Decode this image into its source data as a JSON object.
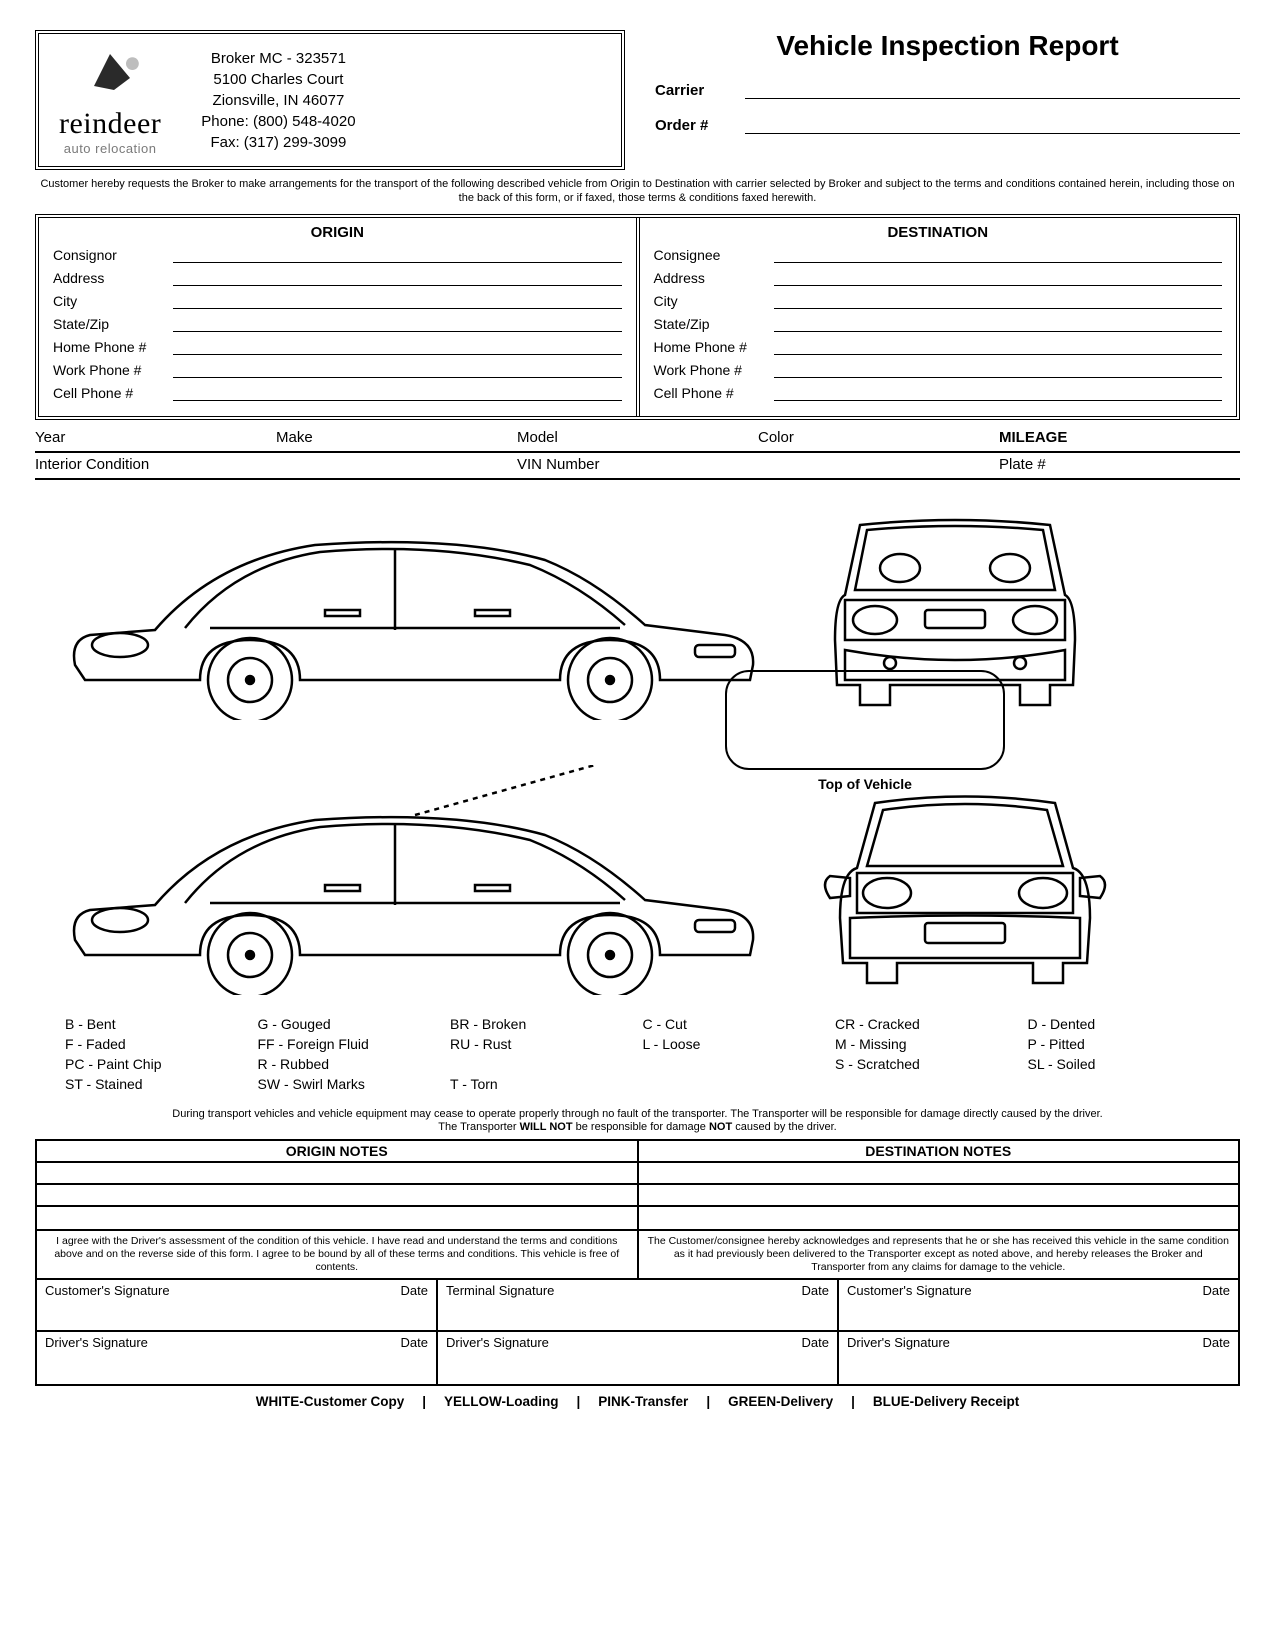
{
  "company": {
    "name": "reindeer",
    "tagline": "auto relocation",
    "broker_line": "Broker MC - 323571",
    "address1": "5100 Charles Court",
    "address2": "Zionsville, IN 46077",
    "phone": "Phone: (800) 548-4020",
    "fax": "Fax: (317) 299-3099"
  },
  "title": "Vehicle Inspection Report",
  "header_fields": {
    "carrier": "Carrier",
    "order": "Order #"
  },
  "terms_text": "Customer hereby requests the Broker to make arrangements for the transport of the following described vehicle from Origin to Destination with carrier selected by Broker and subject to the terms and conditions contained herein, including those on the back of this form, or if faxed, those terms & conditions faxed herewith.",
  "origin_dest": {
    "origin_head": "ORIGIN",
    "dest_head": "DESTINATION",
    "origin_fields": [
      "Consignor",
      "Address",
      "City",
      "State/Zip",
      "Home Phone #",
      "Work Phone #",
      "Cell Phone #"
    ],
    "dest_fields": [
      "Consignee",
      "Address",
      "City",
      "State/Zip",
      "Home Phone #",
      "Work Phone #",
      "Cell Phone #"
    ]
  },
  "vehicle_rows": {
    "row1": [
      "Year",
      "Make",
      "Model",
      "Color",
      "MILEAGE"
    ],
    "row2": [
      "Interior Condition",
      "",
      "VIN Number",
      "",
      "Plate #"
    ]
  },
  "top_of_vehicle": "Top of Vehicle",
  "legend": [
    {
      "code": "B",
      "label": "Bent"
    },
    {
      "code": "G",
      "label": "Gouged"
    },
    {
      "code": "BR",
      "label": "Broken"
    },
    {
      "code": "C",
      "label": "Cut"
    },
    {
      "code": "CR",
      "label": "Cracked"
    },
    {
      "code": "D",
      "label": "Dented"
    },
    {
      "code": "F",
      "label": "Faded"
    },
    {
      "code": "FF",
      "label": "Foreign Fluid"
    },
    {
      "code": "RU",
      "label": "Rust"
    },
    {
      "code": "L",
      "label": "Loose"
    },
    {
      "code": "M",
      "label": "Missing"
    },
    {
      "code": "P",
      "label": "Pitted"
    },
    {
      "code": "PC",
      "label": "Paint Chip"
    },
    {
      "code": "R",
      "label": "Rubbed"
    },
    {
      "code": "",
      "label": ""
    },
    {
      "code": "",
      "label": ""
    },
    {
      "code": "S",
      "label": "Scratched"
    },
    {
      "code": "SL",
      "label": "Soiled"
    },
    {
      "code": "ST",
      "label": "Stained"
    },
    {
      "code": "SW",
      "label": "Swirl Marks"
    },
    {
      "code": "T",
      "label": "Torn"
    }
  ],
  "transport_disclaimer_1": "During transport vehicles and vehicle equipment may cease to operate properly through no fault of the transporter. The Transporter will be responsible for damage directly caused by the driver.",
  "transport_disclaimer_2a": "The Transporter ",
  "transport_disclaimer_2b": "WILL NOT",
  "transport_disclaimer_2c": " be responsible for damage ",
  "transport_disclaimer_2d": "NOT",
  "transport_disclaimer_2e": " caused by the driver.",
  "notes": {
    "origin_head": "ORIGIN NOTES",
    "dest_head": "DESTINATION NOTES"
  },
  "agreements": {
    "left": "I agree with the Driver's assessment of the condition of this vehicle. I have read and understand the terms and conditions above and on the reverse side of this form. I agree to be bound by all of these terms and conditions. This vehicle is free of contents.",
    "right": "The Customer/consignee hereby acknowledges and represents that he or she has received this vehicle in the same condition as it had previously been delivered to the Transporter except as noted above, and hereby releases the Broker and Transporter from any claims for damage to the vehicle."
  },
  "signatures": {
    "customer": "Customer's Signature",
    "terminal": "Terminal Signature",
    "driver": "Driver's Signature",
    "date": "Date"
  },
  "copies": [
    "WHITE-Customer Copy",
    "YELLOW-Loading",
    "PINK-Transfer",
    "GREEN-Delivery",
    "BLUE-Delivery Receipt"
  ]
}
